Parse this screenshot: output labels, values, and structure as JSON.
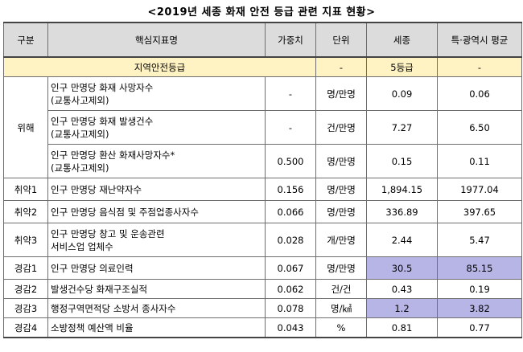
{
  "title": "<2019년 세종 화재 안전 등급 관련 지표 현황>",
  "headers": {
    "category": "구분",
    "indicator": "핵심지표명",
    "weight": "가중치",
    "unit": "단위",
    "sejong": "세종",
    "average": "특·광역시 평균"
  },
  "summary": {
    "label": "지역안전등급",
    "unit": "-",
    "sejong": "5등급",
    "average": "-"
  },
  "rows": [
    {
      "category": "위해",
      "indicator_line1": "인구 만명당 화재 사망자수",
      "indicator_line2": "(교통사고제외)",
      "weight": "-",
      "unit": "명/만명",
      "sejong": "0.09",
      "average": "0.06"
    },
    {
      "category": "",
      "indicator_line1": "인구 만명당 화재 발생건수",
      "indicator_line2": "(교통사고제외)",
      "weight": "-",
      "unit": "건/만명",
      "sejong": "7.27",
      "average": "6.50"
    },
    {
      "category": "",
      "indicator_line1": "인구 만명당 환산 화재사망자수*",
      "indicator_line2": "(교통사고제외)",
      "weight": "0.500",
      "unit": "명/만명",
      "sejong": "0.15",
      "average": "0.11"
    },
    {
      "category": "취약1",
      "indicator_line1": "인구 만명당 재난약자수",
      "indicator_line2": "",
      "weight": "0.156",
      "unit": "명/만명",
      "sejong": "1,894.15",
      "average": "1977.04"
    },
    {
      "category": "취약2",
      "indicator_line1": "인구 만명당 음식점 및 주점업종사자수",
      "indicator_line2": "",
      "weight": "0.066",
      "unit": "명/만명",
      "sejong": "336.89",
      "average": "397.65"
    },
    {
      "category": "취약3",
      "indicator_line1": "인구 만명당 창고 및 운송관련",
      "indicator_line2": "서비스업 업체수",
      "weight": "0.028",
      "unit": "개/만명",
      "sejong": "2.44",
      "average": "5.47"
    },
    {
      "category": "경감1",
      "indicator_line1": "인구 만명당 의료인력",
      "indicator_line2": "",
      "weight": "0.067",
      "unit": "명/만명",
      "sejong": "30.5",
      "average": "85.15"
    },
    {
      "category": "경감2",
      "indicator_line1": "발생건수당 화재구조실적",
      "indicator_line2": "",
      "weight": "0.062",
      "unit": "건/건",
      "sejong": "0.43",
      "average": "0.19"
    },
    {
      "category": "경감3",
      "indicator_line1": "행정구역면적당 소방서 종사자수",
      "indicator_line2": "",
      "weight": "0.078",
      "unit": "명/㎢",
      "sejong": "1.2",
      "average": "3.82"
    },
    {
      "category": "경감4",
      "indicator_line1": "소방정책 예산액 비율",
      "indicator_line2": "",
      "weight": "0.043",
      "unit": "%",
      "sejong": "0.81",
      "average": "0.77"
    }
  ],
  "colors": {
    "header_bg": "#dcdcdc",
    "summary_bg": "#fff3c4",
    "highlight": "#b7b4e6"
  }
}
